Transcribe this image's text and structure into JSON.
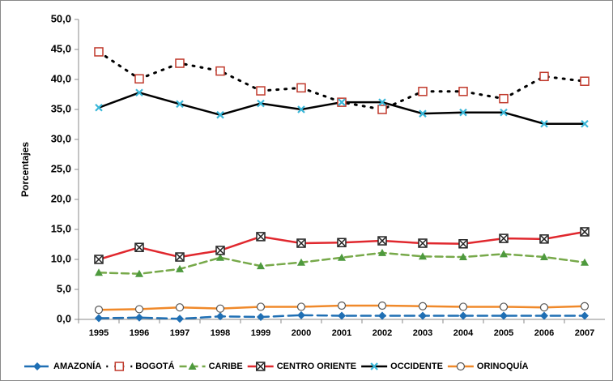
{
  "chart_data": {
    "type": "line",
    "y_label": "Porcentajes",
    "categories": [
      "1995",
      "1996",
      "1997",
      "1998",
      "1999",
      "2000",
      "2001",
      "2002",
      "2003",
      "2004",
      "2005",
      "2006",
      "2007"
    ],
    "ylim": [
      0,
      50
    ],
    "yticks": [
      {
        "value": 0,
        "label": "0,0"
      },
      {
        "value": 5,
        "label": "5,0"
      },
      {
        "value": 10,
        "label": "10,0"
      },
      {
        "value": 15,
        "label": "15,0"
      },
      {
        "value": 20,
        "label": "20,0"
      },
      {
        "value": 25,
        "label": "25,0"
      },
      {
        "value": 30,
        "label": "30,0"
      },
      {
        "value": 35,
        "label": "35,0"
      },
      {
        "value": 40,
        "label": "40,0"
      },
      {
        "value": 45,
        "label": "45,0"
      },
      {
        "value": 50,
        "label": "50,0"
      }
    ],
    "grid": false,
    "legend": "bottom",
    "series": [
      {
        "name": "AMAZONÍA",
        "color": "#1f6fb4",
        "marker_color": "#1f6fb4",
        "marker": "diamond",
        "dash": "12 6",
        "values": [
          0.2,
          0.3,
          0.1,
          0.5,
          0.4,
          0.7,
          0.6,
          0.6,
          0.6,
          0.6,
          0.6,
          0.6,
          0.6
        ]
      },
      {
        "name": "BOGOTÁ",
        "color": "#000000",
        "marker_color": "#c0392b",
        "marker": "square",
        "dash": "2 8",
        "values": [
          44.6,
          40.1,
          42.7,
          41.4,
          38.1,
          38.6,
          36.2,
          35.0,
          38.0,
          38.0,
          36.8,
          40.5,
          39.7
        ]
      },
      {
        "name": "CARIBE",
        "color": "#77a94a",
        "marker_color": "#4e9a3e",
        "marker": "triangle",
        "dash": "9 5",
        "values": [
          7.8,
          7.6,
          8.4,
          10.3,
          8.9,
          9.5,
          10.3,
          11.1,
          10.5,
          10.4,
          10.9,
          10.4,
          9.5
        ]
      },
      {
        "name": "CENTRO ORIENTE",
        "color": "#e0282e",
        "marker_color": "#222222",
        "marker": "xsquare",
        "dash": "",
        "values": [
          10.0,
          12.0,
          10.4,
          11.5,
          13.8,
          12.7,
          12.8,
          13.1,
          12.7,
          12.6,
          13.5,
          13.4,
          14.6
        ]
      },
      {
        "name": "OCCIDENTE",
        "color": "#000000",
        "marker_color": "#3ab7d8",
        "marker": "x",
        "dash": "",
        "values": [
          35.3,
          37.8,
          35.9,
          34.1,
          36.0,
          35.0,
          36.2,
          36.2,
          34.3,
          34.5,
          34.5,
          32.6,
          32.6
        ]
      },
      {
        "name": "ORINOQUÍA",
        "color": "#f0892a",
        "marker_color": "#555555",
        "marker": "circle",
        "dash": "",
        "values": [
          1.6,
          1.7,
          2.0,
          1.8,
          2.1,
          2.1,
          2.3,
          2.3,
          2.2,
          2.1,
          2.1,
          2.0,
          2.2
        ]
      }
    ]
  }
}
